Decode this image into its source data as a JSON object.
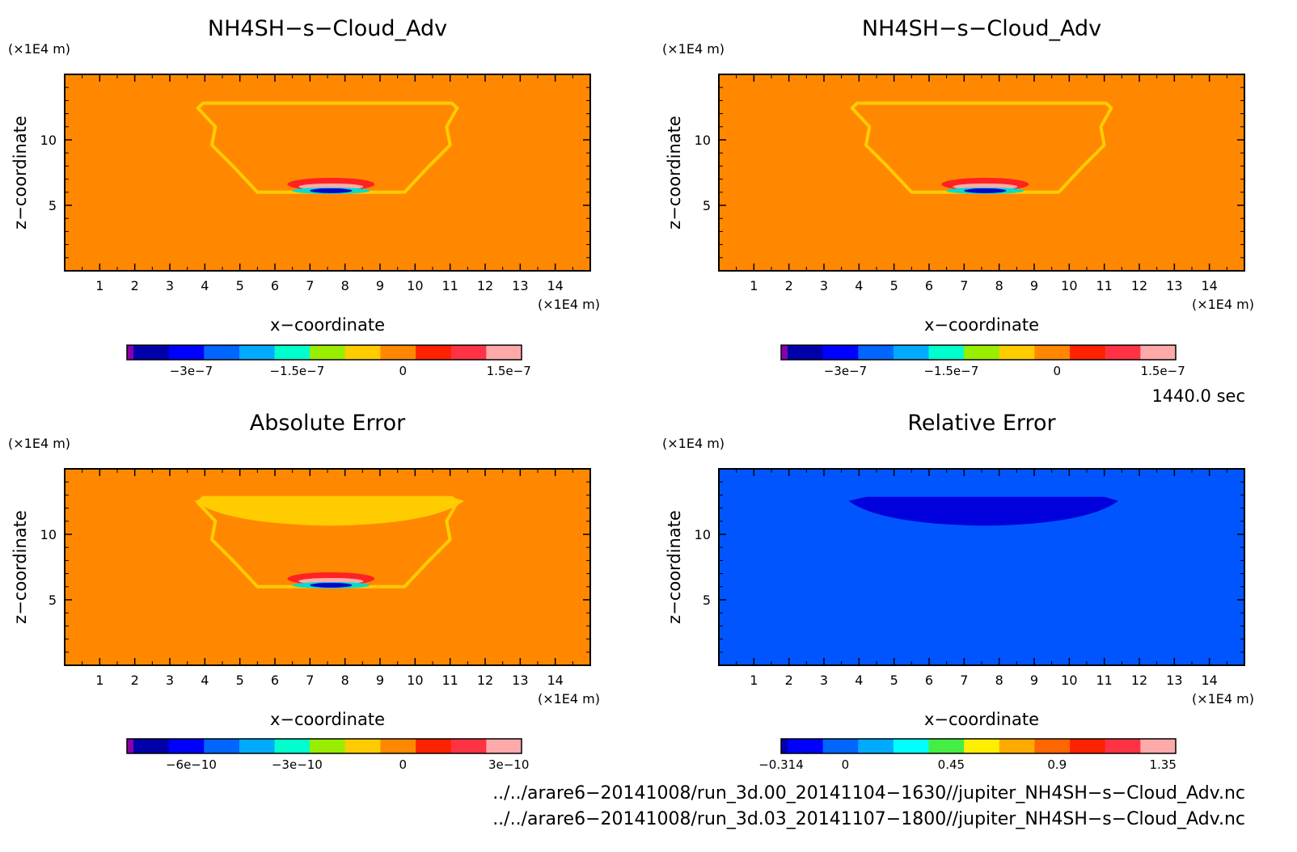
{
  "chart_data": [
    {
      "type": "heatmap",
      "title": "NH4SH−s−Cloud_Adv",
      "xlabel": "x−coordinate",
      "ylabel": "z−coordinate",
      "x_unit": "(×1E4 m)",
      "y_unit": "(×1E4 m)",
      "x_ticks": [
        "1",
        "2",
        "3",
        "4",
        "5",
        "6",
        "7",
        "8",
        "9",
        "10",
        "11",
        "12",
        "13",
        "14"
      ],
      "y_ticks": [
        "5",
        "10"
      ],
      "xlim": [
        0,
        15
      ],
      "ylim": [
        0,
        15
      ],
      "background_color": "#ff8800",
      "features": [
        {
          "kind": "outline",
          "color": "#ffcc00",
          "description_x": [
            3.8,
            11.2
          ],
          "z_top": 12.8,
          "z_bottom": 6.0
        },
        {
          "kind": "dipole",
          "x_center": 7.6,
          "z_center": 6.3,
          "positive": "#ff2222",
          "negative": "#0000cc"
        }
      ],
      "colorbar": {
        "colors": [
          "#8800aa",
          "#0000aa",
          "#0000ff",
          "#0066ff",
          "#00aaff",
          "#00ffcc",
          "#99ee00",
          "#ffcc00",
          "#ff8800",
          "#ff2200",
          "#ff3344",
          "#ffaaaa"
        ],
        "tick_labels": [
          "−3e−7",
          "−1.5e−7",
          "0",
          "1.5e−7"
        ]
      }
    },
    {
      "type": "heatmap",
      "title": "NH4SH−s−Cloud_Adv",
      "xlabel": "x−coordinate",
      "ylabel": "z−coordinate",
      "x_unit": "(×1E4 m)",
      "y_unit": "(×1E4 m)",
      "x_ticks": [
        "1",
        "2",
        "3",
        "4",
        "5",
        "6",
        "7",
        "8",
        "9",
        "10",
        "11",
        "12",
        "13",
        "14"
      ],
      "y_ticks": [
        "5",
        "10"
      ],
      "xlim": [
        0,
        15
      ],
      "ylim": [
        0,
        15
      ],
      "background_color": "#ff8800",
      "features": [
        {
          "kind": "outline",
          "color": "#ffcc00",
          "description_x": [
            3.8,
            11.2
          ],
          "z_top": 12.8,
          "z_bottom": 6.0
        },
        {
          "kind": "dipole",
          "x_center": 7.6,
          "z_center": 6.3,
          "positive": "#ff2222",
          "negative": "#0000cc"
        }
      ],
      "colorbar": {
        "colors": [
          "#8800aa",
          "#0000aa",
          "#0000ff",
          "#0066ff",
          "#00aaff",
          "#00ffcc",
          "#99ee00",
          "#ffcc00",
          "#ff8800",
          "#ff2200",
          "#ff3344",
          "#ffaaaa"
        ],
        "tick_labels": [
          "−3e−7",
          "−1.5e−7",
          "0",
          "1.5e−7"
        ]
      }
    },
    {
      "type": "heatmap",
      "title": "Absolute Error",
      "xlabel": "x−coordinate",
      "ylabel": "z−coordinate",
      "x_unit": "(×1E4 m)",
      "y_unit": "(×1E4 m)",
      "x_ticks": [
        "1",
        "2",
        "3",
        "4",
        "5",
        "6",
        "7",
        "8",
        "9",
        "10",
        "11",
        "12",
        "13",
        "14"
      ],
      "y_ticks": [
        "5",
        "10"
      ],
      "xlim": [
        0,
        15
      ],
      "ylim": [
        0,
        15
      ],
      "background_color": "#ff8800",
      "features": [
        {
          "kind": "cap",
          "color": "#ffcc00",
          "z_top": 12.8,
          "z_bottom": 10.9
        },
        {
          "kind": "outline",
          "color": "#ffcc00",
          "description_x": [
            3.8,
            11.2
          ],
          "z_top": 12.8,
          "z_bottom": 6.0
        },
        {
          "kind": "dipole",
          "x_center": 7.6,
          "z_center": 6.3,
          "positive": "#ff2222",
          "negative": "#0000cc"
        }
      ],
      "colorbar": {
        "colors": [
          "#8800aa",
          "#0000aa",
          "#0000ff",
          "#0066ff",
          "#00aaff",
          "#00ffcc",
          "#99ee00",
          "#ffcc00",
          "#ff8800",
          "#ff2200",
          "#ff3344",
          "#ffaaaa"
        ],
        "tick_labels": [
          "−6e−10",
          "−3e−10",
          "0",
          "3e−10"
        ]
      }
    },
    {
      "type": "heatmap",
      "title": "Relative Error",
      "xlabel": "x−coordinate",
      "ylabel": "z−coordinate",
      "x_unit": "(×1E4 m)",
      "y_unit": "(×1E4 m)",
      "x_ticks": [
        "1",
        "2",
        "3",
        "4",
        "5",
        "6",
        "7",
        "8",
        "9",
        "10",
        "11",
        "12",
        "13",
        "14"
      ],
      "y_ticks": [
        "5",
        "10"
      ],
      "xlim": [
        0,
        15
      ],
      "ylim": [
        0,
        15
      ],
      "background_color": "#0055ff",
      "features": [
        {
          "kind": "cap",
          "color": "#0000dd",
          "z_top": 12.8,
          "z_bottom": 10.9
        }
      ],
      "colorbar": {
        "colors": [
          "#0000aa",
          "#0000ff",
          "#0066ff",
          "#00aaff",
          "#00ffff",
          "#44ee44",
          "#ffee00",
          "#ffaa00",
          "#ff6600",
          "#ff2200",
          "#ff3344",
          "#ffaaaa"
        ],
        "tick_labels": [
          "−0.314",
          "0",
          "0.45",
          "0.9",
          "1.35"
        ]
      }
    }
  ],
  "time_label": "1440.0 sec",
  "file_lines": [
    "../../arare6−20141008/run_3d.00_20141104−1630//jupiter_NH4SH−s−Cloud_Adv.nc",
    "../../arare6−20141008/run_3d.03_20141107−1800//jupiter_NH4SH−s−Cloud_Adv.nc"
  ]
}
